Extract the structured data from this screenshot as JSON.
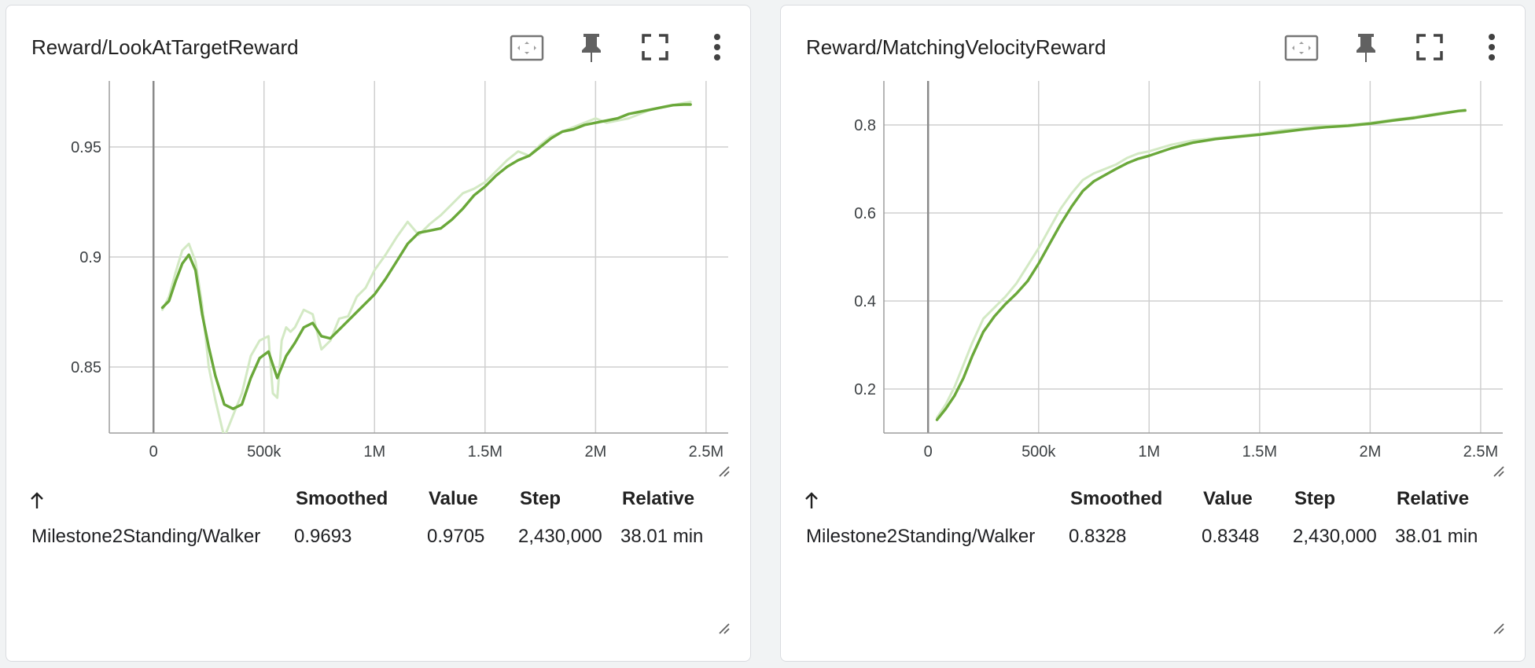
{
  "cards": [
    {
      "title": "Reward/LookAtTargetReward",
      "table": {
        "sort_arrow": "↑",
        "headers": [
          "Smoothed",
          "Value",
          "Step",
          "Relative"
        ],
        "row": {
          "run": "Milestone2Standing/Walker",
          "smoothed": "0.9693",
          "value": "0.9705",
          "step": "2,430,000",
          "relative": "38.01 min"
        }
      }
    },
    {
      "title": "Reward/MatchingVelocityReward",
      "table": {
        "sort_arrow": "↑",
        "headers": [
          "Smoothed",
          "Value",
          "Step",
          "Relative"
        ],
        "row": {
          "run": "Milestone2Standing/Walker",
          "smoothed": "0.8328",
          "value": "0.8348",
          "step": "2,430,000",
          "relative": "38.01 min"
        }
      }
    }
  ],
  "toolbar_icons": [
    "fit-domain-icon",
    "pin-icon",
    "fullscreen-icon",
    "more-vert-icon"
  ],
  "colors": {
    "smoothed_line": "#6aa83a",
    "raw_line": "#d3e9c4",
    "grid": "#cfcfcf",
    "zero_line": "#8a8a8a"
  },
  "chart_data": [
    {
      "type": "line",
      "title": "Reward/LookAtTargetReward",
      "xlabel": "",
      "ylabel": "",
      "xlim": [
        -200000,
        2600000
      ],
      "ylim": [
        0.82,
        0.98
      ],
      "xticks": [
        0,
        500000,
        1000000,
        1500000,
        2000000,
        2500000
      ],
      "xtick_labels": [
        "0",
        "500k",
        "1M",
        "1.5M",
        "2M",
        "2.5M"
      ],
      "yticks": [
        0.85,
        0.9,
        0.95
      ],
      "ytick_labels": [
        "0.85",
        "0.9",
        "0.95"
      ],
      "grid": true,
      "series": [
        {
          "role": "raw",
          "x": [
            40000,
            70000,
            100000,
            130000,
            160000,
            190000,
            220000,
            250000,
            280000,
            320000,
            360000,
            400000,
            440000,
            480000,
            520000,
            540000,
            560000,
            580000,
            600000,
            620000,
            640000,
            680000,
            720000,
            760000,
            800000,
            840000,
            880000,
            920000,
            960000,
            1000000,
            1050000,
            1100000,
            1150000,
            1200000,
            1250000,
            1300000,
            1350000,
            1400000,
            1450000,
            1500000,
            1550000,
            1600000,
            1650000,
            1700000,
            1750000,
            1800000,
            1850000,
            1900000,
            1950000,
            2000000,
            2050000,
            2100000,
            2150000,
            2200000,
            2250000,
            2300000,
            2350000,
            2400000,
            2430000
          ],
          "y": [
            0.876,
            0.882,
            0.893,
            0.903,
            0.906,
            0.898,
            0.878,
            0.85,
            0.835,
            0.818,
            0.828,
            0.838,
            0.855,
            0.862,
            0.864,
            0.838,
            0.836,
            0.862,
            0.868,
            0.866,
            0.868,
            0.876,
            0.874,
            0.858,
            0.862,
            0.872,
            0.873,
            0.882,
            0.886,
            0.894,
            0.901,
            0.909,
            0.916,
            0.91,
            0.915,
            0.919,
            0.924,
            0.929,
            0.931,
            0.934,
            0.939,
            0.944,
            0.948,
            0.946,
            0.951,
            0.955,
            0.957,
            0.959,
            0.961,
            0.963,
            0.961,
            0.962,
            0.963,
            0.965,
            0.967,
            0.968,
            0.969,
            0.97,
            0.9705
          ]
        },
        {
          "role": "smoothed",
          "x": [
            40000,
            70000,
            100000,
            130000,
            160000,
            190000,
            220000,
            250000,
            280000,
            320000,
            360000,
            400000,
            440000,
            480000,
            520000,
            560000,
            600000,
            640000,
            680000,
            720000,
            760000,
            800000,
            840000,
            880000,
            920000,
            960000,
            1000000,
            1050000,
            1100000,
            1150000,
            1200000,
            1250000,
            1300000,
            1350000,
            1400000,
            1450000,
            1500000,
            1550000,
            1600000,
            1650000,
            1700000,
            1750000,
            1800000,
            1850000,
            1900000,
            1950000,
            2000000,
            2050000,
            2100000,
            2150000,
            2200000,
            2250000,
            2300000,
            2350000,
            2400000,
            2430000
          ],
          "y": [
            0.877,
            0.88,
            0.889,
            0.897,
            0.901,
            0.894,
            0.874,
            0.859,
            0.846,
            0.833,
            0.831,
            0.833,
            0.845,
            0.854,
            0.857,
            0.845,
            0.855,
            0.861,
            0.868,
            0.87,
            0.864,
            0.863,
            0.867,
            0.871,
            0.875,
            0.879,
            0.883,
            0.89,
            0.898,
            0.906,
            0.911,
            0.912,
            0.913,
            0.917,
            0.922,
            0.928,
            0.932,
            0.937,
            0.941,
            0.944,
            0.946,
            0.95,
            0.954,
            0.957,
            0.958,
            0.96,
            0.961,
            0.962,
            0.963,
            0.965,
            0.966,
            0.967,
            0.968,
            0.969,
            0.9693,
            0.9693
          ]
        }
      ]
    },
    {
      "type": "line",
      "title": "Reward/MatchingVelocityReward",
      "xlabel": "",
      "ylabel": "",
      "xlim": [
        -200000,
        2600000
      ],
      "ylim": [
        0.1,
        0.9
      ],
      "xticks": [
        0,
        500000,
        1000000,
        1500000,
        2000000,
        2500000
      ],
      "xtick_labels": [
        "0",
        "500k",
        "1M",
        "1.5M",
        "2M",
        "2.5M"
      ],
      "yticks": [
        0.2,
        0.4,
        0.6,
        0.8
      ],
      "ytick_labels": [
        "0.2",
        "0.4",
        "0.6",
        "0.8"
      ],
      "grid": true,
      "series": [
        {
          "role": "raw",
          "x": [
            40000,
            80000,
            120000,
            160000,
            200000,
            250000,
            300000,
            350000,
            400000,
            450000,
            500000,
            550000,
            600000,
            650000,
            700000,
            750000,
            800000,
            850000,
            900000,
            950000,
            1000000,
            1100000,
            1200000,
            1300000,
            1400000,
            1500000,
            1600000,
            1700000,
            1800000,
            1900000,
            2000000,
            2100000,
            2200000,
            2300000,
            2400000,
            2430000
          ],
          "y": [
            0.135,
            0.165,
            0.205,
            0.255,
            0.305,
            0.36,
            0.385,
            0.41,
            0.44,
            0.48,
            0.52,
            0.565,
            0.61,
            0.645,
            0.675,
            0.69,
            0.7,
            0.71,
            0.725,
            0.735,
            0.74,
            0.755,
            0.765,
            0.77,
            0.775,
            0.78,
            0.788,
            0.793,
            0.798,
            0.8,
            0.805,
            0.812,
            0.818,
            0.826,
            0.832,
            0.8348
          ]
        },
        {
          "role": "smoothed",
          "x": [
            40000,
            80000,
            120000,
            160000,
            200000,
            250000,
            300000,
            350000,
            400000,
            450000,
            500000,
            550000,
            600000,
            650000,
            700000,
            750000,
            800000,
            850000,
            900000,
            950000,
            1000000,
            1100000,
            1200000,
            1300000,
            1400000,
            1500000,
            1600000,
            1700000,
            1800000,
            1900000,
            2000000,
            2100000,
            2200000,
            2300000,
            2400000,
            2430000
          ],
          "y": [
            0.13,
            0.155,
            0.185,
            0.225,
            0.275,
            0.33,
            0.365,
            0.393,
            0.417,
            0.445,
            0.485,
            0.53,
            0.575,
            0.615,
            0.65,
            0.672,
            0.686,
            0.7,
            0.713,
            0.723,
            0.73,
            0.747,
            0.76,
            0.768,
            0.773,
            0.778,
            0.784,
            0.79,
            0.795,
            0.798,
            0.803,
            0.81,
            0.816,
            0.824,
            0.8318,
            0.8328
          ]
        }
      ]
    }
  ]
}
